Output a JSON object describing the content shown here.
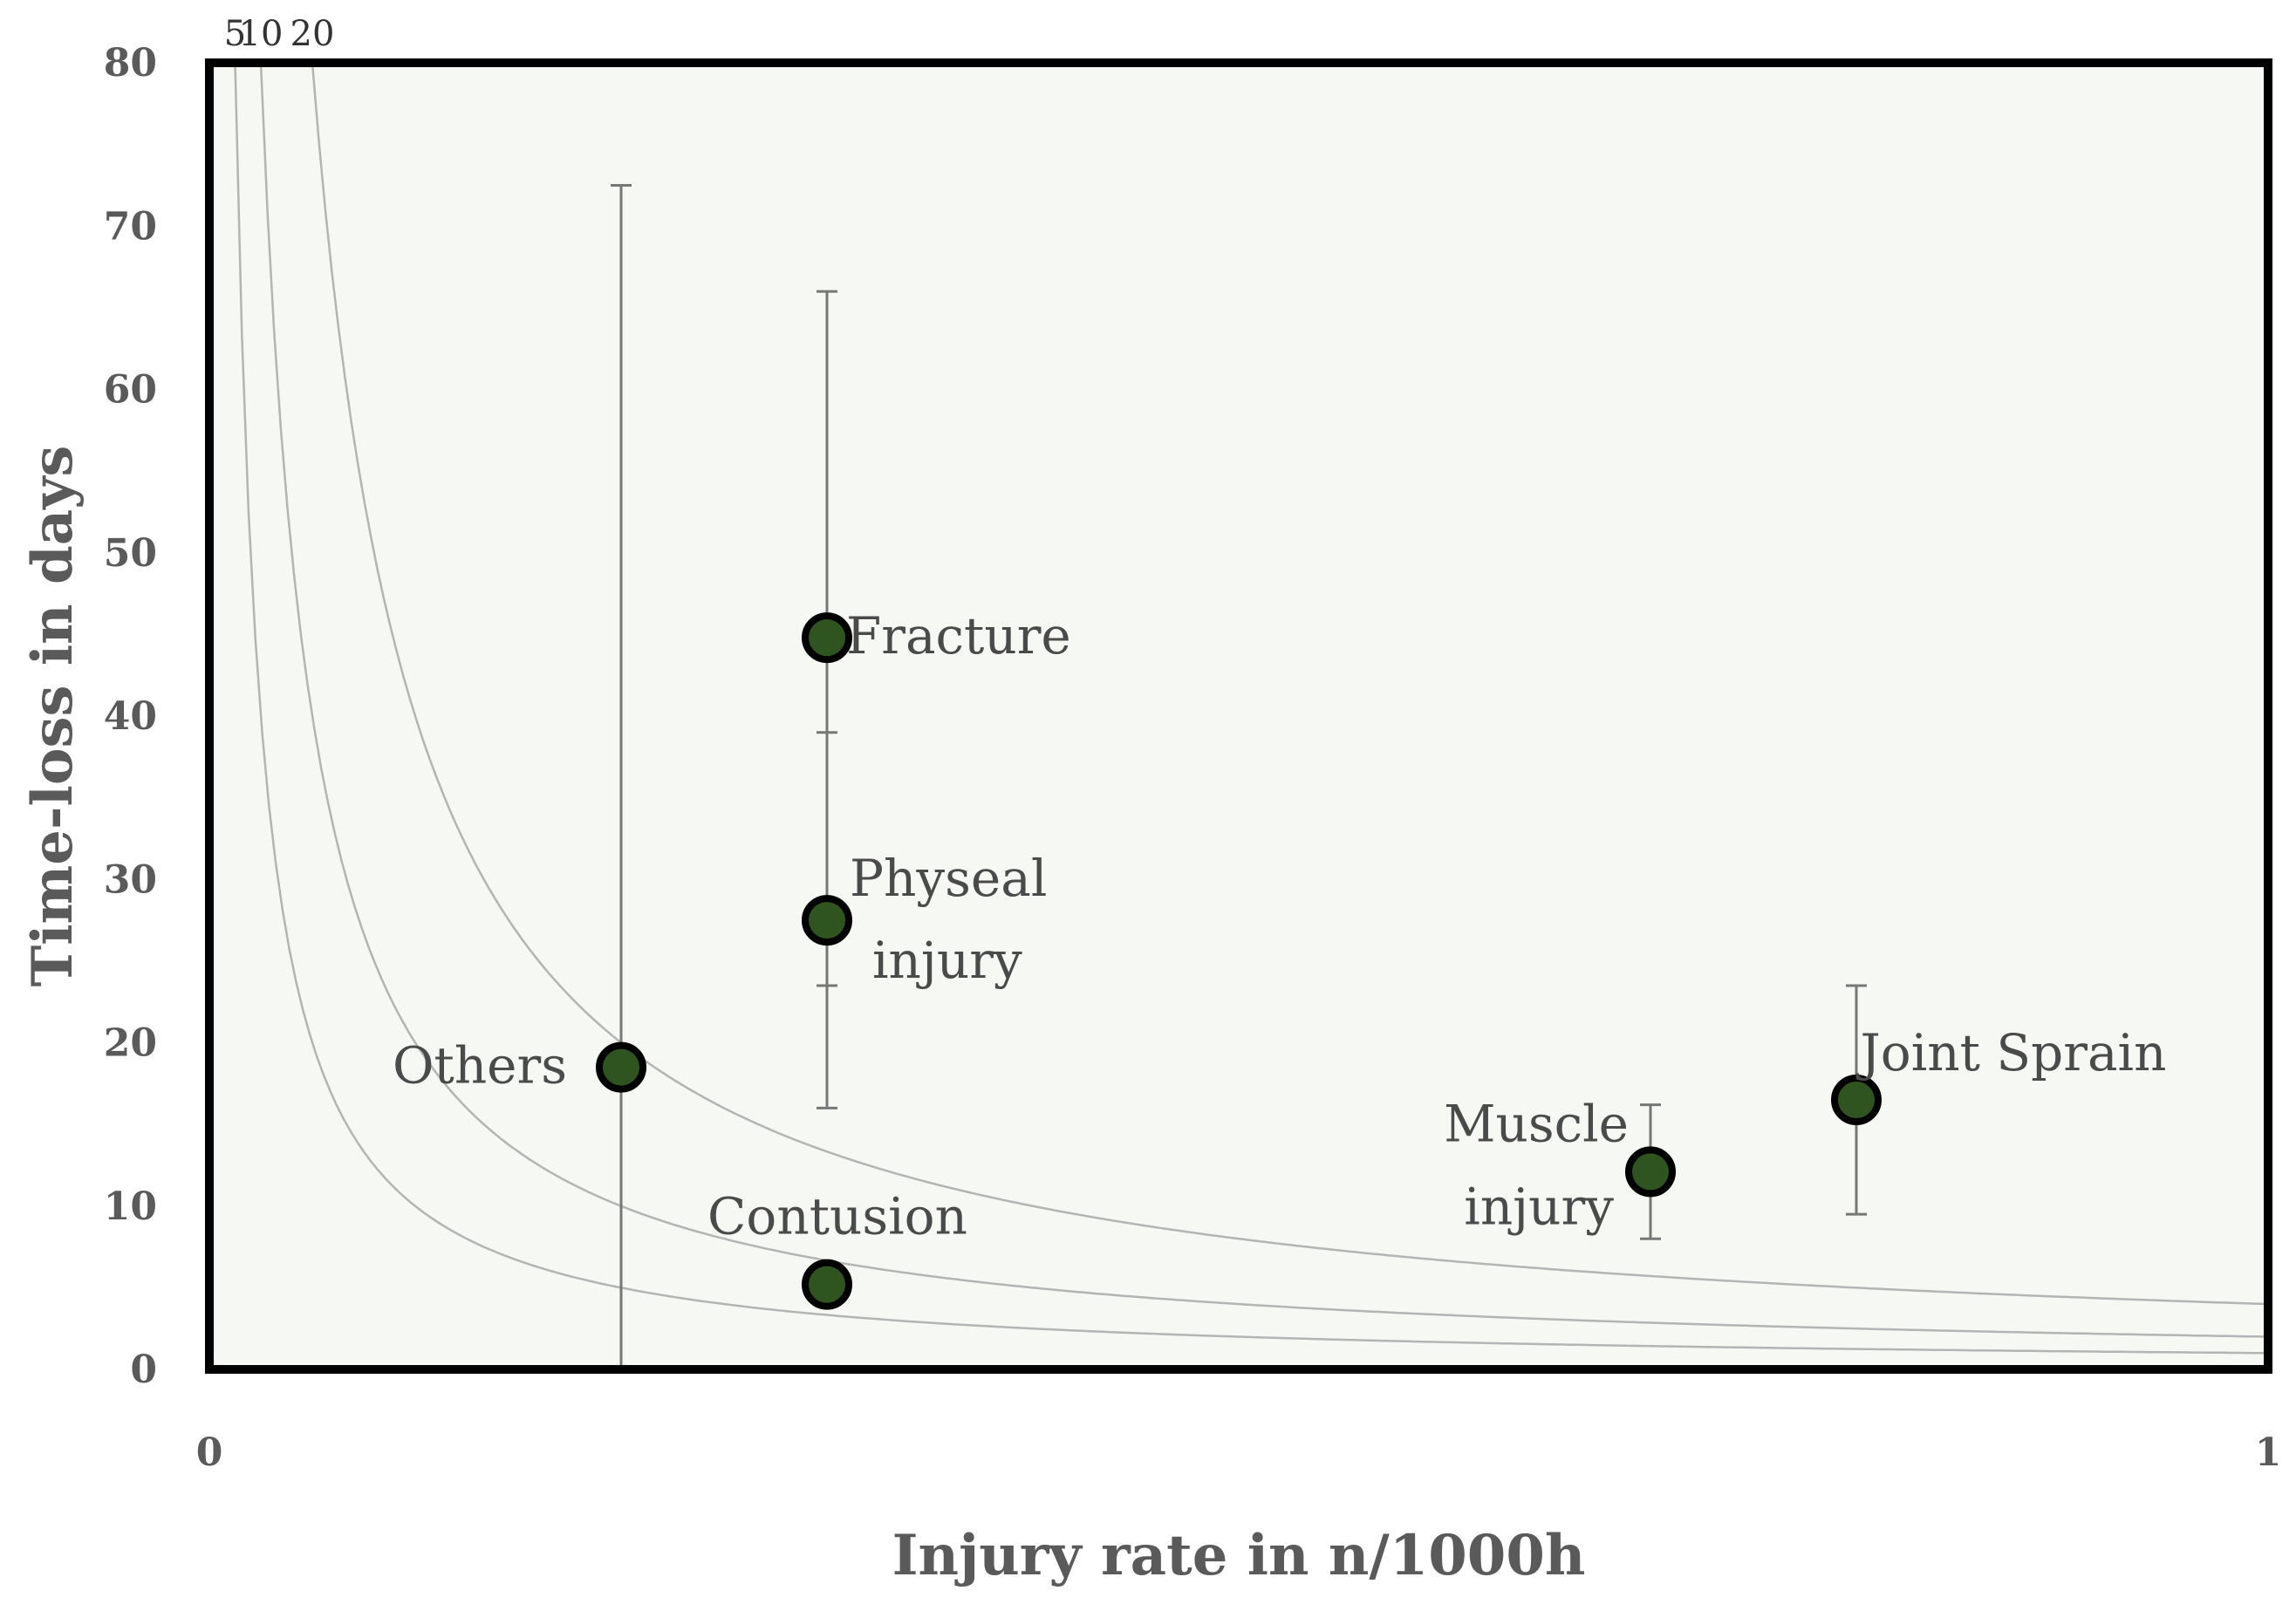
{
  "chart_data": {
    "type": "scatter",
    "xlabel": "Injury rate in n/1000h",
    "ylabel": "Time-loss in days",
    "xlim": [
      0,
      1
    ],
    "ylim": [
      0,
      80
    ],
    "x_ticks": [
      "0",
      "1"
    ],
    "y_ticks": [
      "0",
      "10",
      "20",
      "30",
      "40",
      "50",
      "60",
      "70",
      "80"
    ],
    "grid": false,
    "colors": {
      "plot_background": "#f6f8f3",
      "point_fill": "#2f5420",
      "point_stroke": "#000000",
      "curve": "#b4b4b4",
      "error_bar": "#777777"
    },
    "isolines": [
      {
        "label": "5",
        "product": 1
      },
      {
        "label": "10",
        "product": 2
      },
      {
        "label": "20",
        "product": 4
      }
    ],
    "points": [
      {
        "name": "Others",
        "x": 0.2,
        "y": 18.5,
        "err_low": 0,
        "err_high": 72.5
      },
      {
        "name": "Fracture",
        "x": 0.3,
        "y": 44.8,
        "err_low": 23.5,
        "err_high": 66
      },
      {
        "name": "Physeal injury",
        "x": 0.3,
        "y": 27.5,
        "err_low": 16,
        "err_high": 39
      },
      {
        "name": "Contusion",
        "x": 0.3,
        "y": 5.2
      },
      {
        "name": "Muscle injury",
        "x": 0.7,
        "y": 12.1,
        "err_low": 8,
        "err_high": 16.2
      },
      {
        "name": "Joint Sprain",
        "x": 0.8,
        "y": 16.5,
        "err_low": 9.5,
        "err_high": 23.5
      }
    ]
  }
}
